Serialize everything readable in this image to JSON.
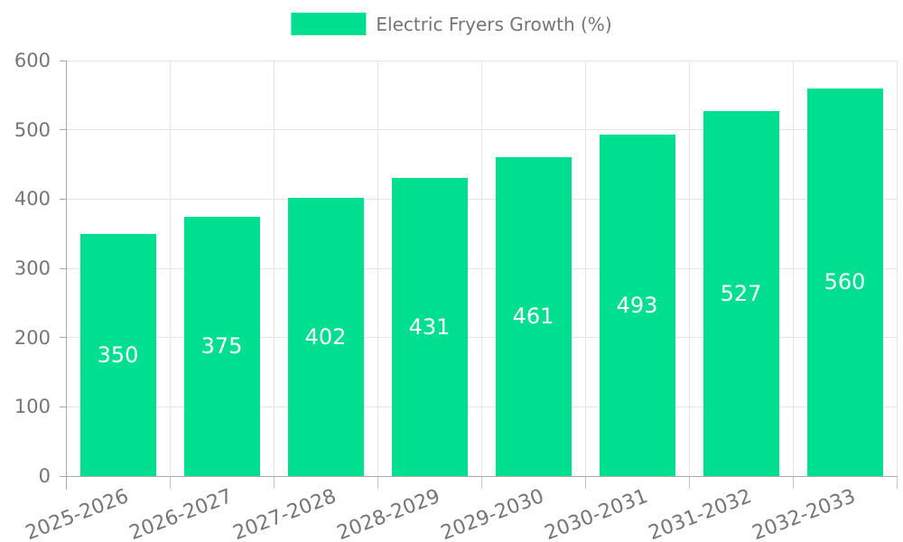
{
  "chart_data": {
    "type": "bar",
    "title": "",
    "legend": {
      "label": "Electric Fryers Growth (%)",
      "position": "top-center"
    },
    "categories": [
      "2025-2026",
      "2026-2027",
      "2027-2028",
      "2028-2029",
      "2029-2030",
      "2030-2031",
      "2031-2032",
      "2032-2033"
    ],
    "values": [
      350,
      375,
      402,
      431,
      461,
      493,
      527,
      560
    ],
    "data_labels": [
      "350",
      "375",
      "402",
      "431",
      "461",
      "493",
      "527",
      "560"
    ],
    "xlabel": "",
    "ylabel": "",
    "ylim": [
      0,
      600
    ],
    "yticks": [
      0,
      100,
      200,
      300,
      400,
      500,
      600
    ],
    "grid": "on",
    "x_label_rotation_deg": -21,
    "colors": {
      "bar": "#00DF8F",
      "bar_value_text": "#ffffff",
      "axis_text": "#757575",
      "axis_line": "#a8a8a8",
      "grid_line": "#e5e5e5",
      "minor_tick": "#c4c4c4",
      "background": "#ffffff"
    }
  }
}
